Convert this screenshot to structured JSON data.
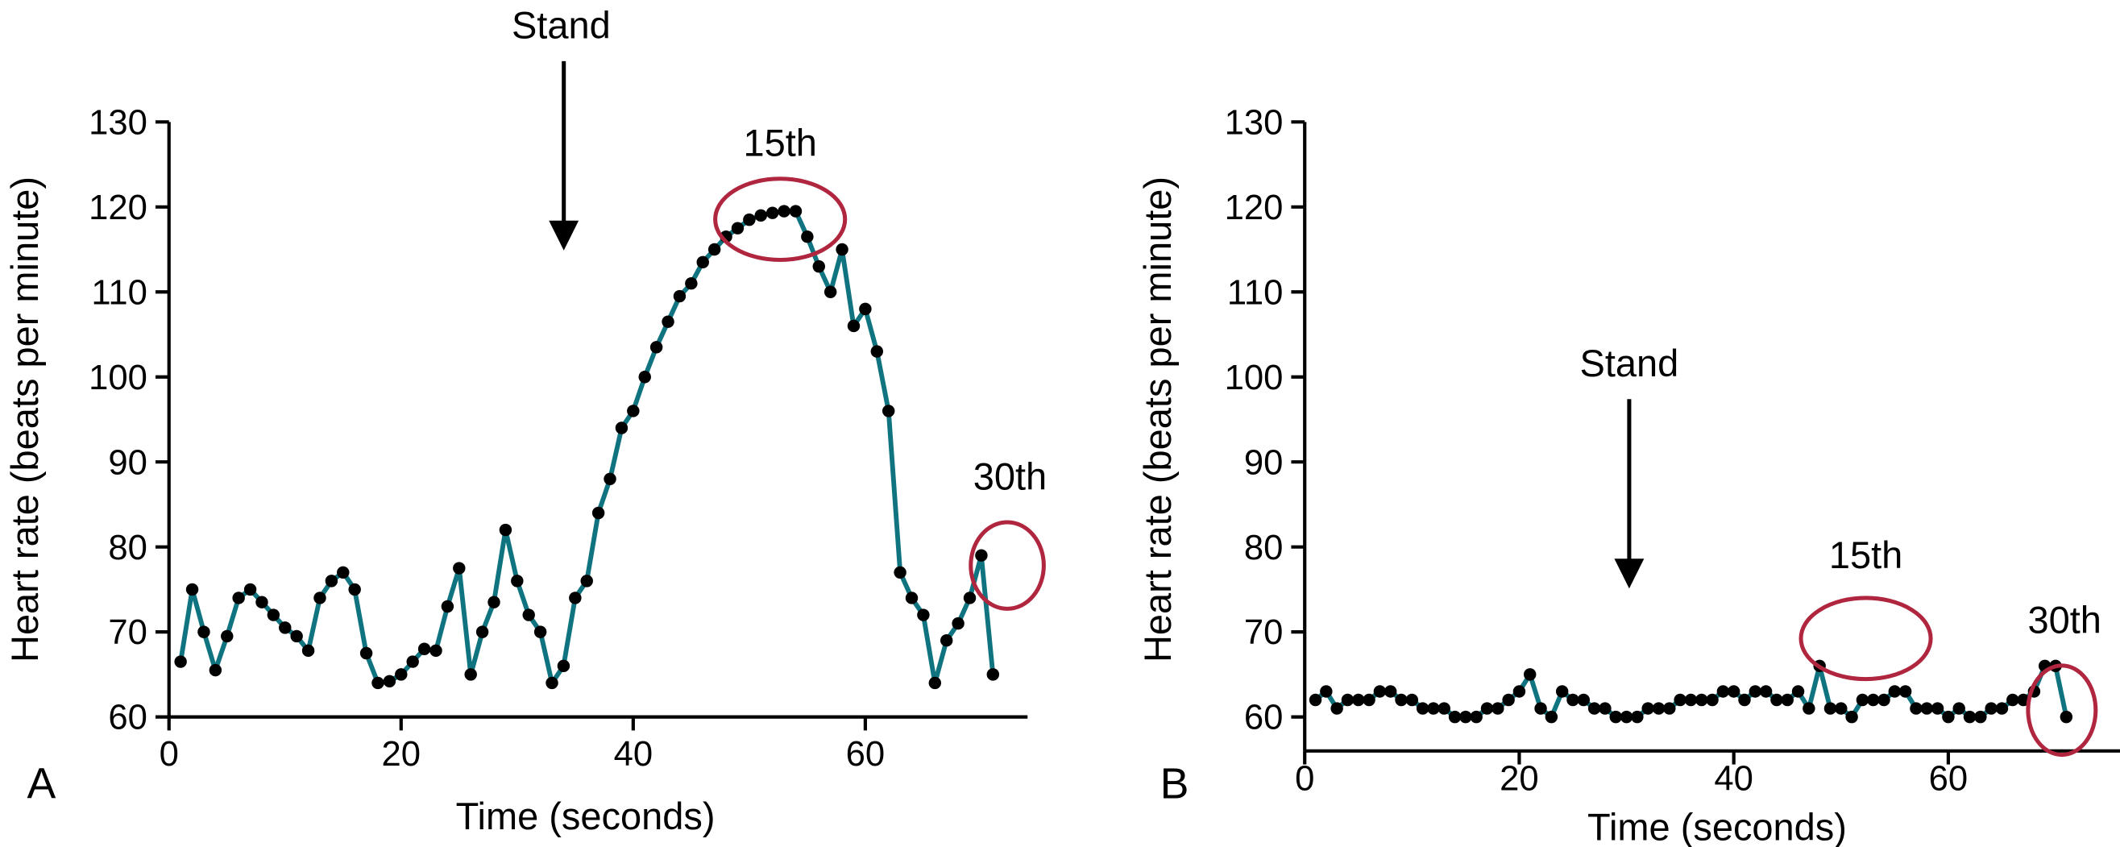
{
  "colors": {
    "line": "#0f7480",
    "points": "#000000",
    "highlight": "#b0263f"
  },
  "chart_data": [
    {
      "type": "line",
      "panel_label": "A",
      "xlabel": "Time (seconds)",
      "ylabel": "Heart rate (beats per minute)",
      "xlim": [
        0,
        73
      ],
      "ylim": [
        60,
        130
      ],
      "xticks": [
        0,
        20,
        40,
        60
      ],
      "yticks": [
        60,
        70,
        80,
        90,
        100,
        110,
        120,
        130
      ],
      "grid": false,
      "annotations": {
        "stand": "Stand",
        "fifteenth": "15th",
        "thirtieth": "30th"
      },
      "x": [
        1,
        2,
        3,
        4,
        5,
        6,
        7,
        8,
        9,
        10,
        11,
        12,
        13,
        14,
        15,
        16,
        17,
        18,
        19,
        20,
        21,
        22,
        23,
        24,
        25,
        26,
        27,
        28,
        29,
        30,
        31,
        32,
        33,
        34,
        35,
        36,
        37,
        38,
        39,
        40,
        41,
        42,
        43,
        44,
        45,
        46,
        47,
        48,
        49,
        50,
        51,
        52,
        53,
        54,
        55,
        56,
        57,
        58,
        59,
        60,
        61,
        62,
        63,
        64,
        65,
        66,
        67,
        68,
        69,
        70,
        71
      ],
      "y": [
        66.5,
        75,
        70,
        65.5,
        69.5,
        74,
        75,
        73.5,
        72,
        70.5,
        69.5,
        67.8,
        74,
        76,
        77,
        75,
        67.5,
        64,
        64.2,
        65,
        66.5,
        68,
        67.8,
        73,
        77.5,
        65,
        70,
        73.5,
        82,
        76,
        72,
        70,
        64,
        66,
        74,
        76,
        84,
        88,
        94,
        96,
        100,
        103.5,
        106.5,
        109.5,
        111,
        113.5,
        115,
        116.5,
        117.5,
        118.5,
        119,
        119.3,
        119.5,
        119.5,
        116.5,
        113,
        110,
        115,
        106,
        108,
        103,
        96,
        77,
        74,
        72,
        64,
        69,
        71,
        74,
        79,
        65
      ]
    },
    {
      "type": "line",
      "panel_label": "B",
      "xlabel": "Time (seconds)",
      "ylabel": "Heart rate (beats per minute)",
      "xlim": [
        0,
        76
      ],
      "ylim": [
        56,
        130
      ],
      "xticks": [
        0,
        20,
        40,
        60
      ],
      "yticks": [
        60,
        70,
        80,
        90,
        100,
        110,
        120,
        130
      ],
      "grid": false,
      "annotations": {
        "stand": "Stand",
        "fifteenth": "15th",
        "thirtieth": "30th"
      },
      "x": [
        1,
        2,
        3,
        4,
        5,
        6,
        7,
        8,
        9,
        10,
        11,
        12,
        13,
        14,
        15,
        16,
        17,
        18,
        19,
        20,
        21,
        22,
        23,
        24,
        25,
        26,
        27,
        28,
        29,
        30,
        31,
        32,
        33,
        34,
        35,
        36,
        37,
        38,
        39,
        40,
        41,
        42,
        43,
        44,
        45,
        46,
        47,
        48,
        49,
        50,
        51,
        52,
        53,
        54,
        55,
        56,
        57,
        58,
        59,
        60,
        61,
        62,
        63,
        64,
        65,
        66,
        67,
        68,
        69,
        70,
        71
      ],
      "y": [
        62,
        63,
        61,
        62,
        62,
        62,
        63,
        63,
        62,
        62,
        61,
        61,
        61,
        60,
        60,
        60,
        61,
        61,
        62,
        63,
        65,
        61,
        60,
        63,
        62,
        62,
        61,
        61,
        60,
        60,
        60,
        61,
        61,
        61,
        62,
        62,
        62,
        62,
        63,
        63,
        62,
        63,
        63,
        62,
        62,
        63,
        61,
        66,
        61,
        61,
        60,
        62,
        62,
        62,
        63,
        63,
        61,
        61,
        61,
        60,
        61,
        60,
        60,
        61,
        61,
        62,
        62,
        63,
        66,
        66,
        60
      ]
    }
  ]
}
